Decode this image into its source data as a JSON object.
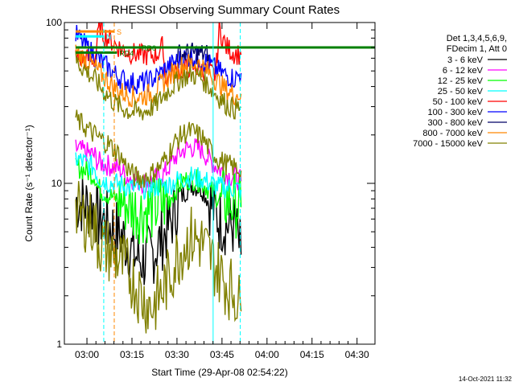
{
  "chart_data": {
    "type": "line",
    "title": "RHESSI Observing Summary Count Rates",
    "xlabel": "Start Time (29-Apr-08 02:54:22)",
    "ylabel": "Count Rate (s⁻¹ detector⁻¹)",
    "y_scale": "log",
    "ylim": [
      1,
      100
    ],
    "xlim_minutes": [
      -4.5,
      31.0
    ],
    "x_tick_labels": [
      "03:00",
      "03:15",
      "03:30",
      "03:45",
      "04:00",
      "04:15",
      "04:30"
    ],
    "y_tick_labels": [
      "1",
      "10",
      "100"
    ],
    "legend": {
      "header": [
        "Det 1,3,4,5,6,9,",
        "FDecim 1, Att 0"
      ],
      "placement": "right"
    },
    "series": [
      {
        "name": "3 - 6 keV",
        "color": "#000000",
        "points": [
          [
            -3.2,
            7.8
          ],
          [
            -1.0,
            7.1
          ],
          [
            -0.7,
            5.9
          ],
          [
            -0.2,
            6.1
          ],
          [
            0.6,
            5.5
          ],
          [
            1.8,
            4.9
          ],
          [
            2.7,
            4.2
          ],
          [
            3.5,
            3.6
          ],
          [
            4.5,
            3.3
          ],
          [
            5.5,
            3.6
          ],
          [
            6.6,
            4.5
          ],
          [
            7.6,
            5.6
          ],
          [
            8.3,
            7.2
          ],
          [
            9.2,
            8.8
          ],
          [
            10.0,
            9.8
          ],
          [
            11.2,
            9.3
          ],
          [
            12.0,
            7.8
          ],
          [
            13.2,
            5.9
          ],
          [
            14.2,
            5.5
          ],
          [
            15.0,
            5.4
          ],
          [
            15.7,
            3.6
          ]
        ]
      },
      {
        "name": "6 - 12 keV",
        "color": "#ff00ff",
        "points": [
          [
            -3.2,
            16.5
          ],
          [
            -1.0,
            14.8
          ],
          [
            -0.7,
            13.6
          ],
          [
            0.6,
            12.9
          ],
          [
            1.8,
            12.3
          ],
          [
            2.7,
            11.0
          ],
          [
            3.5,
            10.6
          ],
          [
            4.5,
            10.1
          ],
          [
            5.5,
            10.4
          ],
          [
            6.6,
            11.0
          ],
          [
            7.6,
            12.9
          ],
          [
            8.3,
            14.8
          ],
          [
            9.2,
            16.2
          ],
          [
            10.0,
            16.8
          ],
          [
            11.2,
            16.2
          ],
          [
            12.0,
            14.1
          ],
          [
            13.2,
            12.3
          ],
          [
            14.2,
            11.2
          ],
          [
            15.0,
            11.0
          ],
          [
            15.7,
            10.3
          ]
        ]
      },
      {
        "name": "12 - 25 keV",
        "color": "#00ff00",
        "points": [
          [
            -3.2,
            12.8
          ],
          [
            -1.0,
            11.2
          ],
          [
            -0.7,
            9.4
          ],
          [
            0.6,
            8.4
          ],
          [
            1.8,
            7.9
          ],
          [
            2.7,
            7.4
          ],
          [
            3.5,
            6.9
          ],
          [
            4.5,
            6.7
          ],
          [
            5.5,
            6.9
          ],
          [
            6.6,
            7.4
          ],
          [
            7.6,
            8.1
          ],
          [
            8.3,
            9.2
          ],
          [
            9.2,
            10.4
          ],
          [
            10.0,
            10.7
          ],
          [
            11.2,
            10.2
          ],
          [
            12.0,
            9.2
          ],
          [
            13.2,
            8.1
          ],
          [
            14.2,
            7.7
          ],
          [
            15.0,
            7.4
          ],
          [
            15.7,
            7.1
          ]
        ]
      },
      {
        "name": "25 - 50 keV",
        "color": "#00ffff",
        "points": [
          [
            -3.2,
            14.3
          ],
          [
            -1.0,
            12.5
          ],
          [
            -0.7,
            10.9
          ],
          [
            0.6,
            10.1
          ],
          [
            1.8,
            9.9
          ],
          [
            2.7,
            9.5
          ],
          [
            3.5,
            9.3
          ],
          [
            4.5,
            9.3
          ],
          [
            5.5,
            9.4
          ],
          [
            6.6,
            9.6
          ],
          [
            7.6,
            9.9
          ],
          [
            8.3,
            10.4
          ],
          [
            9.2,
            10.8
          ],
          [
            10.0,
            11.0
          ],
          [
            11.2,
            10.7
          ],
          [
            12.0,
            10.1
          ],
          [
            13.2,
            9.5
          ],
          [
            14.2,
            9.4
          ],
          [
            15.0,
            9.3
          ],
          [
            15.7,
            9.1
          ]
        ]
      },
      {
        "name": "50 - 100 keV",
        "color": "#ff0000",
        "points": [
          [
            -3.2,
            60.0
          ],
          [
            -1.0,
            59.0
          ],
          [
            -0.5,
            96.0
          ],
          [
            0.0,
            84.0
          ],
          [
            0.8,
            77.0
          ],
          [
            2.0,
            68.5
          ],
          [
            3.0,
            65.0
          ],
          [
            4.0,
            63.0
          ],
          [
            5.0,
            62.5
          ],
          [
            6.0,
            63.0
          ],
          [
            6.8,
            72.0
          ],
          [
            7.0,
            45.0
          ],
          [
            8.0,
            48.0
          ],
          [
            9.0,
            51.0
          ],
          [
            10.0,
            53.0
          ],
          [
            11.0,
            51.5
          ],
          [
            12.0,
            49.0
          ],
          [
            12.8,
            47.0
          ],
          [
            13.2,
            91.0
          ],
          [
            14.0,
            70.5
          ],
          [
            15.0,
            64.0
          ],
          [
            15.7,
            63.0
          ]
        ]
      },
      {
        "name": "100 - 300 keV",
        "color": "#0000ff",
        "points": [
          [
            -3.2,
            84.0
          ],
          [
            -2.0,
            71.0
          ],
          [
            -1.0,
            62.0
          ],
          [
            0.0,
            55.5
          ],
          [
            1.0,
            49.0
          ],
          [
            2.0,
            44.8
          ],
          [
            3.0,
            42.5
          ],
          [
            4.0,
            42.0
          ],
          [
            5.0,
            42.8
          ],
          [
            6.0,
            46.0
          ],
          [
            7.0,
            51.0
          ],
          [
            8.0,
            56.0
          ],
          [
            9.0,
            60.0
          ],
          [
            10.0,
            61.5
          ],
          [
            11.0,
            60.0
          ],
          [
            12.0,
            55.5
          ],
          [
            13.0,
            50.5
          ],
          [
            14.0,
            47.0
          ],
          [
            15.0,
            44.8
          ],
          [
            15.7,
            48.5
          ]
        ]
      },
      {
        "name": "300 - 800 keV",
        "color": "#000066",
        "points": [
          [
            8.4,
            63.0
          ],
          [
            9.0,
            64.0
          ],
          [
            10.0,
            64.5
          ],
          [
            11.0,
            64.0
          ],
          [
            12.0,
            63.0
          ]
        ]
      },
      {
        "name": "800 - 7000 keV",
        "color": "#ff8800",
        "points": [
          [
            -3.2,
            66.0
          ],
          [
            -2.0,
            58.5
          ],
          [
            -1.0,
            52.0
          ],
          [
            0.0,
            46.0
          ],
          [
            1.0,
            40.5
          ],
          [
            2.0,
            37.0
          ],
          [
            3.0,
            35.0
          ],
          [
            4.0,
            34.5
          ],
          [
            5.0,
            35.5
          ],
          [
            6.0,
            38.5
          ],
          [
            7.0,
            43.5
          ],
          [
            8.0,
            49.0
          ],
          [
            9.0,
            54.0
          ],
          [
            10.0,
            56.0
          ],
          [
            11.0,
            54.5
          ],
          [
            12.0,
            49.0
          ],
          [
            13.0,
            43.0
          ],
          [
            14.0,
            38.0
          ],
          [
            15.0,
            35.5
          ],
          [
            15.7,
            36.0
          ]
        ]
      },
      {
        "name": "7000 - 15000 keV",
        "color": "#808000",
        "points": [
          [
            -3.2,
            58.0
          ],
          [
            -2.0,
            50.0
          ],
          [
            -1.0,
            44.0
          ],
          [
            0.0,
            37.5
          ],
          [
            1.0,
            32.5
          ],
          [
            2.0,
            29.5
          ],
          [
            3.0,
            28.0
          ],
          [
            4.0,
            27.5
          ],
          [
            5.0,
            28.5
          ],
          [
            6.0,
            31.0
          ],
          [
            7.0,
            36.0
          ],
          [
            8.0,
            41.0
          ],
          [
            9.0,
            45.5
          ],
          [
            10.0,
            47.5
          ],
          [
            11.0,
            46.0
          ],
          [
            12.0,
            40.5
          ],
          [
            13.0,
            35.0
          ],
          [
            14.0,
            31.0
          ],
          [
            15.0,
            29.0
          ],
          [
            15.7,
            29.8
          ]
        ]
      },
      {
        "name": "7000 - 15000 keV",
        "color": "#808000",
        "points": [
          [
            -3.2,
            25.0
          ],
          [
            -1.5,
            21.0
          ],
          [
            -0.5,
            19.0
          ],
          [
            0.6,
            17.5
          ],
          [
            1.8,
            15.0
          ],
          [
            2.7,
            12.5
          ],
          [
            3.5,
            11.0
          ],
          [
            4.5,
            10.8
          ],
          [
            5.5,
            11.5
          ],
          [
            6.6,
            13.0
          ],
          [
            7.6,
            16.0
          ],
          [
            8.3,
            18.5
          ],
          [
            9.2,
            20.5
          ],
          [
            10.0,
            21.0
          ],
          [
            11.2,
            19.5
          ],
          [
            12.0,
            16.5
          ],
          [
            13.2,
            14.0
          ],
          [
            14.2,
            13.0
          ],
          [
            15.0,
            12.5
          ],
          [
            15.7,
            12.0
          ]
        ]
      },
      {
        "name": "7000 - 15000 keV",
        "color": "#808000",
        "points": [
          [
            -3.2,
            6.6
          ],
          [
            -1.0,
            5.5
          ],
          [
            -0.7,
            4.4
          ],
          [
            0.6,
            3.8
          ],
          [
            1.8,
            3.3
          ],
          [
            2.7,
            2.9
          ],
          [
            3.5,
            2.4
          ],
          [
            4.5,
            1.9
          ],
          [
            5.5,
            1.7
          ],
          [
            6.6,
            2.1
          ],
          [
            7.6,
            2.7
          ],
          [
            8.3,
            3.4
          ],
          [
            9.2,
            4.2
          ],
          [
            10.0,
            4.6
          ],
          [
            11.2,
            4.3
          ],
          [
            12.0,
            3.6
          ],
          [
            13.2,
            2.8
          ],
          [
            14.2,
            2.3
          ],
          [
            15.0,
            2.1
          ],
          [
            15.7,
            1.6
          ]
        ]
      }
    ],
    "annotations": [
      "S",
      "N",
      "N",
      "RD0",
      "RD4"
    ],
    "flags": [
      {
        "label": "S",
        "color": "#ff8800",
        "x": [
          -3.2,
          1.2
        ],
        "y": 88
      },
      {
        "label": "N",
        "color": "#00ffff",
        "x": [
          -3.2,
          0.0
        ],
        "y": 82
      },
      {
        "label": "RD0",
        "color": "#008000",
        "x": [
          -3.2,
          31.0
        ],
        "y": 70
      },
      {
        "label": "RD4",
        "color": "#008000",
        "x": [
          -3.2,
          1.5
        ],
        "y": 65
      }
    ],
    "timestamp": "14-Oct-2021 11:32"
  }
}
